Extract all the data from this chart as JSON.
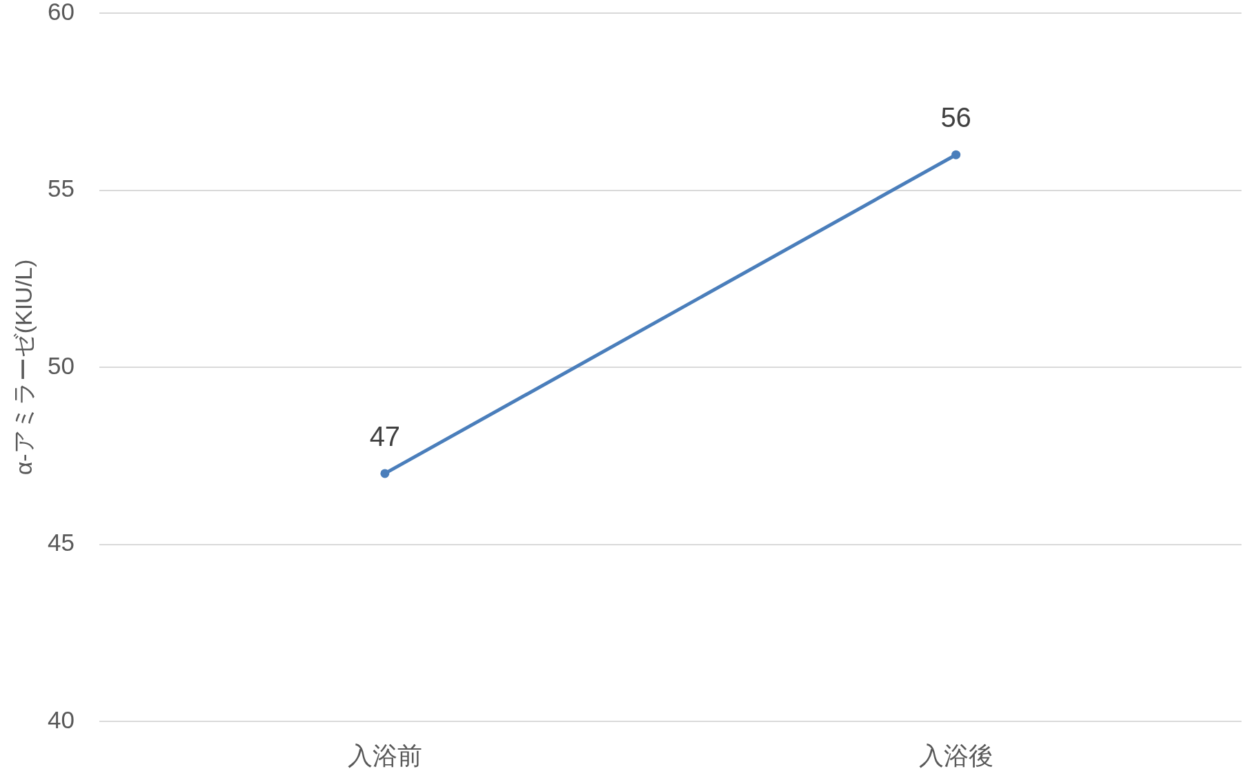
{
  "chart_data": {
    "type": "line",
    "ylabel": "α-アミラーゼ(KIU/L)",
    "categories": [
      "入浴前",
      "入浴後"
    ],
    "series": [
      {
        "color": "#4a7ebb",
        "values": [
          47,
          56
        ]
      }
    ],
    "ylim": [
      40,
      60
    ],
    "yticks": [
      40,
      45,
      50,
      55,
      60
    ],
    "grid": "y",
    "data_labels": true,
    "marker": "circle",
    "line_style": "solid"
  }
}
